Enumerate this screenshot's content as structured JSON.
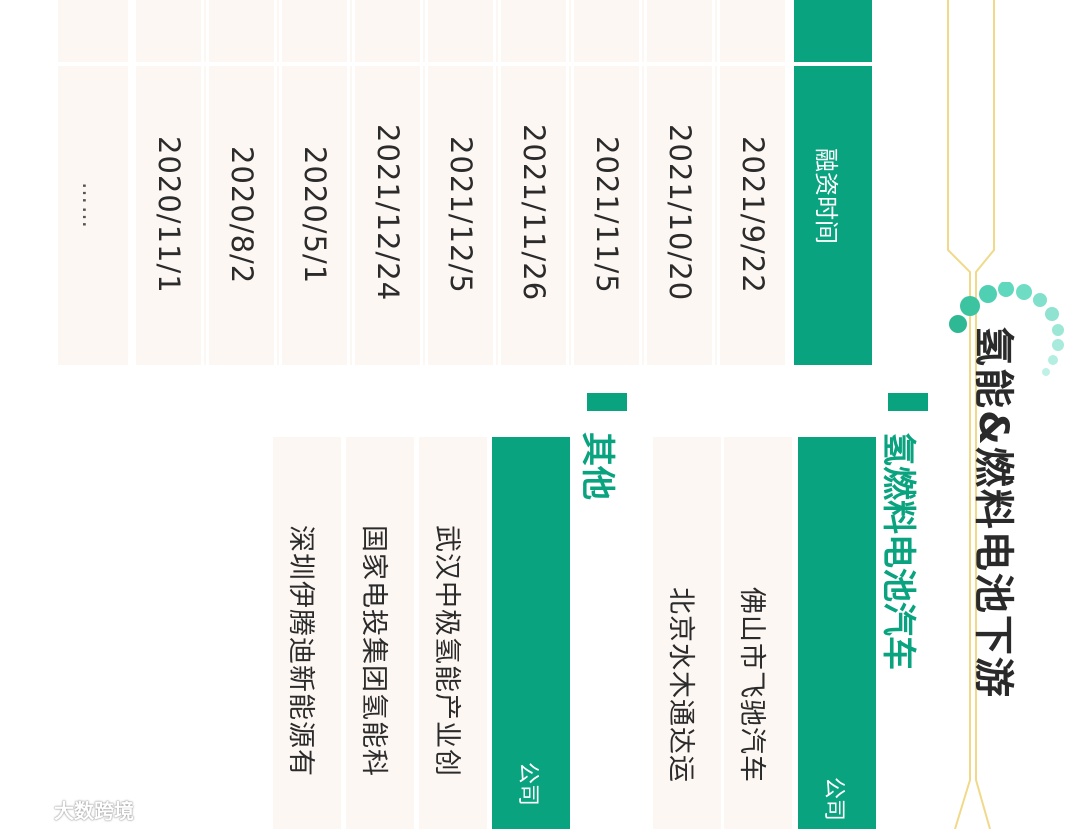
{
  "main_title": "氢能&燃料电池下游",
  "financing_table": {
    "header": "融资时间",
    "dates": [
      "2021/9/22",
      "2021/10/20",
      "2021/11/5",
      "2021/11/26",
      "2021/12/5",
      "2021/12/24",
      "2020/5/1",
      "2020/8/2",
      "2020/11/1"
    ],
    "more": "……"
  },
  "section_fuel_cell": {
    "title": "氢燃料电池汽车",
    "header": "公司",
    "companies": [
      "佛山市飞驰汽车",
      "北京水木通达运"
    ]
  },
  "section_other": {
    "title": "其他",
    "header": "公司",
    "companies": [
      "武汉中极氢能产业创",
      "国家电投集团氢能科",
      "深圳伊腾迪新能源有"
    ]
  },
  "watermark": "大数跨境",
  "colors": {
    "accent": "#0aa37f",
    "cell_bg": "#fdf7f4",
    "deco_green": "#4fd0b3",
    "deco_line": "#f1d98a"
  }
}
